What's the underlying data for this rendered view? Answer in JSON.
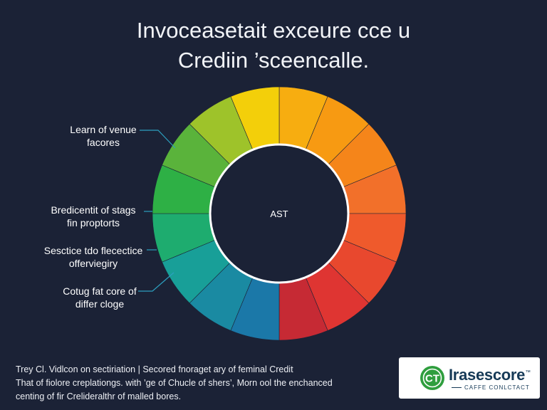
{
  "chart_data": {
    "type": "pie",
    "title": [
      "Invoceasetait exceure cce u",
      "Crediin ’sceencalle."
    ],
    "center_label": "AST",
    "segments": [
      {
        "value": 1,
        "color": "#f7ad10"
      },
      {
        "value": 1,
        "color": "#f79a12"
      },
      {
        "value": 1,
        "color": "#f5851a"
      },
      {
        "value": 1,
        "color": "#f2702a"
      },
      {
        "value": 1,
        "color": "#ef5a2c"
      },
      {
        "value": 1,
        "color": "#e8482e"
      },
      {
        "value": 1,
        "color": "#df3532"
      },
      {
        "value": 1,
        "color": "#c62a34"
      },
      {
        "value": 1,
        "color": "#1b78a8"
      },
      {
        "value": 1,
        "color": "#1a8aa2"
      },
      {
        "value": 1,
        "color": "#189f98"
      },
      {
        "value": 1,
        "color": "#1eac6f"
      },
      {
        "value": 1,
        "color": "#2eb045"
      },
      {
        "value": 1,
        "color": "#5ab33b"
      },
      {
        "value": 1,
        "color": "#9ec32a"
      },
      {
        "value": 1,
        "color": "#f3cf0a"
      }
    ],
    "annotations": [
      {
        "lines": [
          "Learn of venue",
          "facores"
        ]
      },
      {
        "lines": [
          "Bredicentit of stags",
          "fin proptorts"
        ]
      },
      {
        "lines": [
          "Sesctice tdo flecectice",
          "offerviegiry"
        ]
      },
      {
        "lines": [
          "Cotug fat core of",
          "differ cloge"
        ]
      }
    ]
  },
  "footer": {
    "lines": [
      "Trey Cl. Vidlcon on sectiriation | Secored fnoraget ary of feminal Credit",
      "That of fiolore creplationgs. with ’ge of Chucle of shers’, Morn ool the enchanced",
      "centing of fir Crelideralthr of malled bores."
    ]
  },
  "logo": {
    "mark": "CT",
    "name": "Irasescore",
    "tm": "™",
    "tagline": "CAFFE CONLCTACT",
    "colors": {
      "green": "#2f9e3e",
      "navy": "#163a57"
    }
  }
}
